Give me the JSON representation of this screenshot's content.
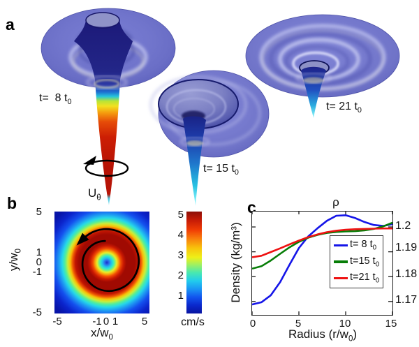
{
  "panel_a": {
    "label": "a",
    "time_labels": [
      {
        "main": "t=  8 t",
        "sub": "0"
      },
      {
        "main": "t= 15 t",
        "sub": "0"
      },
      {
        "main": "t= 21 t",
        "sub": "0"
      }
    ],
    "rotation_label": {
      "main": "U",
      "sub": "θ"
    }
  },
  "panel_b": {
    "label": "b",
    "ylabel": {
      "main": "y/w",
      "sub": "0"
    },
    "xlabel": {
      "main": "x/w",
      "sub": "0"
    },
    "yticks": [
      "5",
      "1",
      "0",
      "-1",
      "-5"
    ],
    "xticks": [
      "-5",
      "-1",
      "0",
      "1",
      "5"
    ],
    "colorbar": {
      "ticks": [
        "5",
        "4",
        "3",
        "2",
        "1"
      ],
      "unit": "cm/s"
    }
  },
  "panel_c": {
    "label": "c",
    "title": "ρ",
    "ylabel": "Density (kg/m³)",
    "xlabel": {
      "pre": "Radius (r/w",
      "sub": "0",
      "post": ")"
    },
    "xticks": [
      "0",
      "5",
      "10",
      "15"
    ],
    "yticks": [
      "1.2",
      "1.19",
      "1.18",
      "1.17"
    ],
    "legend": [
      {
        "main": "t= 8 t",
        "sub": "0"
      },
      {
        "main": "t=15 t",
        "sub": "0"
      },
      {
        "main": "t=21 t",
        "sub": "0"
      }
    ]
  },
  "chart_data": [
    {
      "type": "heatmap",
      "title": "U_theta azimuthal velocity field",
      "xlabel": "x/w0",
      "ylabel": "y/w0",
      "xlim": [
        -5,
        5
      ],
      "ylim": [
        -5,
        5
      ],
      "colormap": "jet",
      "colorbar": {
        "min": 0,
        "max": 5,
        "unit": "cm/s",
        "ticks": [
          1,
          2,
          3,
          4,
          5
        ]
      },
      "radial_profile": {
        "r_over_w0": [
          0,
          0.5,
          1.0,
          1.5,
          2.0,
          2.5,
          3.0,
          4.0,
          5.0,
          7.0
        ],
        "velocity_cm_s": [
          0,
          2.2,
          4.2,
          4.9,
          5.0,
          4.9,
          4.3,
          2.6,
          1.1,
          0.15
        ]
      },
      "annotation": "black circular arrow indicating counterclockwise circulation"
    },
    {
      "type": "line",
      "title": "ρ",
      "xlabel": "Radius (r/w0)",
      "ylabel": "Density (kg/m3)",
      "x": [
        0,
        1,
        2,
        3,
        4,
        5,
        6,
        7,
        8,
        9,
        10,
        11,
        12,
        13,
        14,
        15
      ],
      "xlim": [
        0,
        15
      ],
      "ylim": [
        1.1646,
        1.2062
      ],
      "xticks": [
        0,
        5,
        10,
        15
      ],
      "yticks": [
        1.2,
        1.19,
        1.18,
        1.17
      ],
      "grid": false,
      "legend_position": "middle-right",
      "series": [
        {
          "name": "t= 8 t0",
          "color": "#1515e8",
          "values": [
            1.1688,
            1.1697,
            1.1725,
            1.1778,
            1.1848,
            1.1915,
            1.1962,
            1.1995,
            1.2025,
            1.2045,
            1.2047,
            1.2036,
            1.202,
            1.2008,
            1.2004,
            1.2011
          ]
        },
        {
          "name": "t=15 t0",
          "color": "#067d06",
          "values": [
            1.1832,
            1.1842,
            1.1865,
            1.1892,
            1.1918,
            1.194,
            1.1957,
            1.1968,
            1.1976,
            1.198,
            1.1982,
            1.1983,
            1.1986,
            1.1992,
            1.2002,
            1.2017
          ]
        },
        {
          "name": "t=21 t0",
          "color": "#ee1111",
          "values": [
            1.1878,
            1.1884,
            1.1899,
            1.1914,
            1.193,
            1.1945,
            1.1959,
            1.197,
            1.1979,
            1.1985,
            1.1989,
            1.1991,
            1.1992,
            1.1993,
            1.1994,
            1.1994
          ]
        }
      ]
    }
  ]
}
